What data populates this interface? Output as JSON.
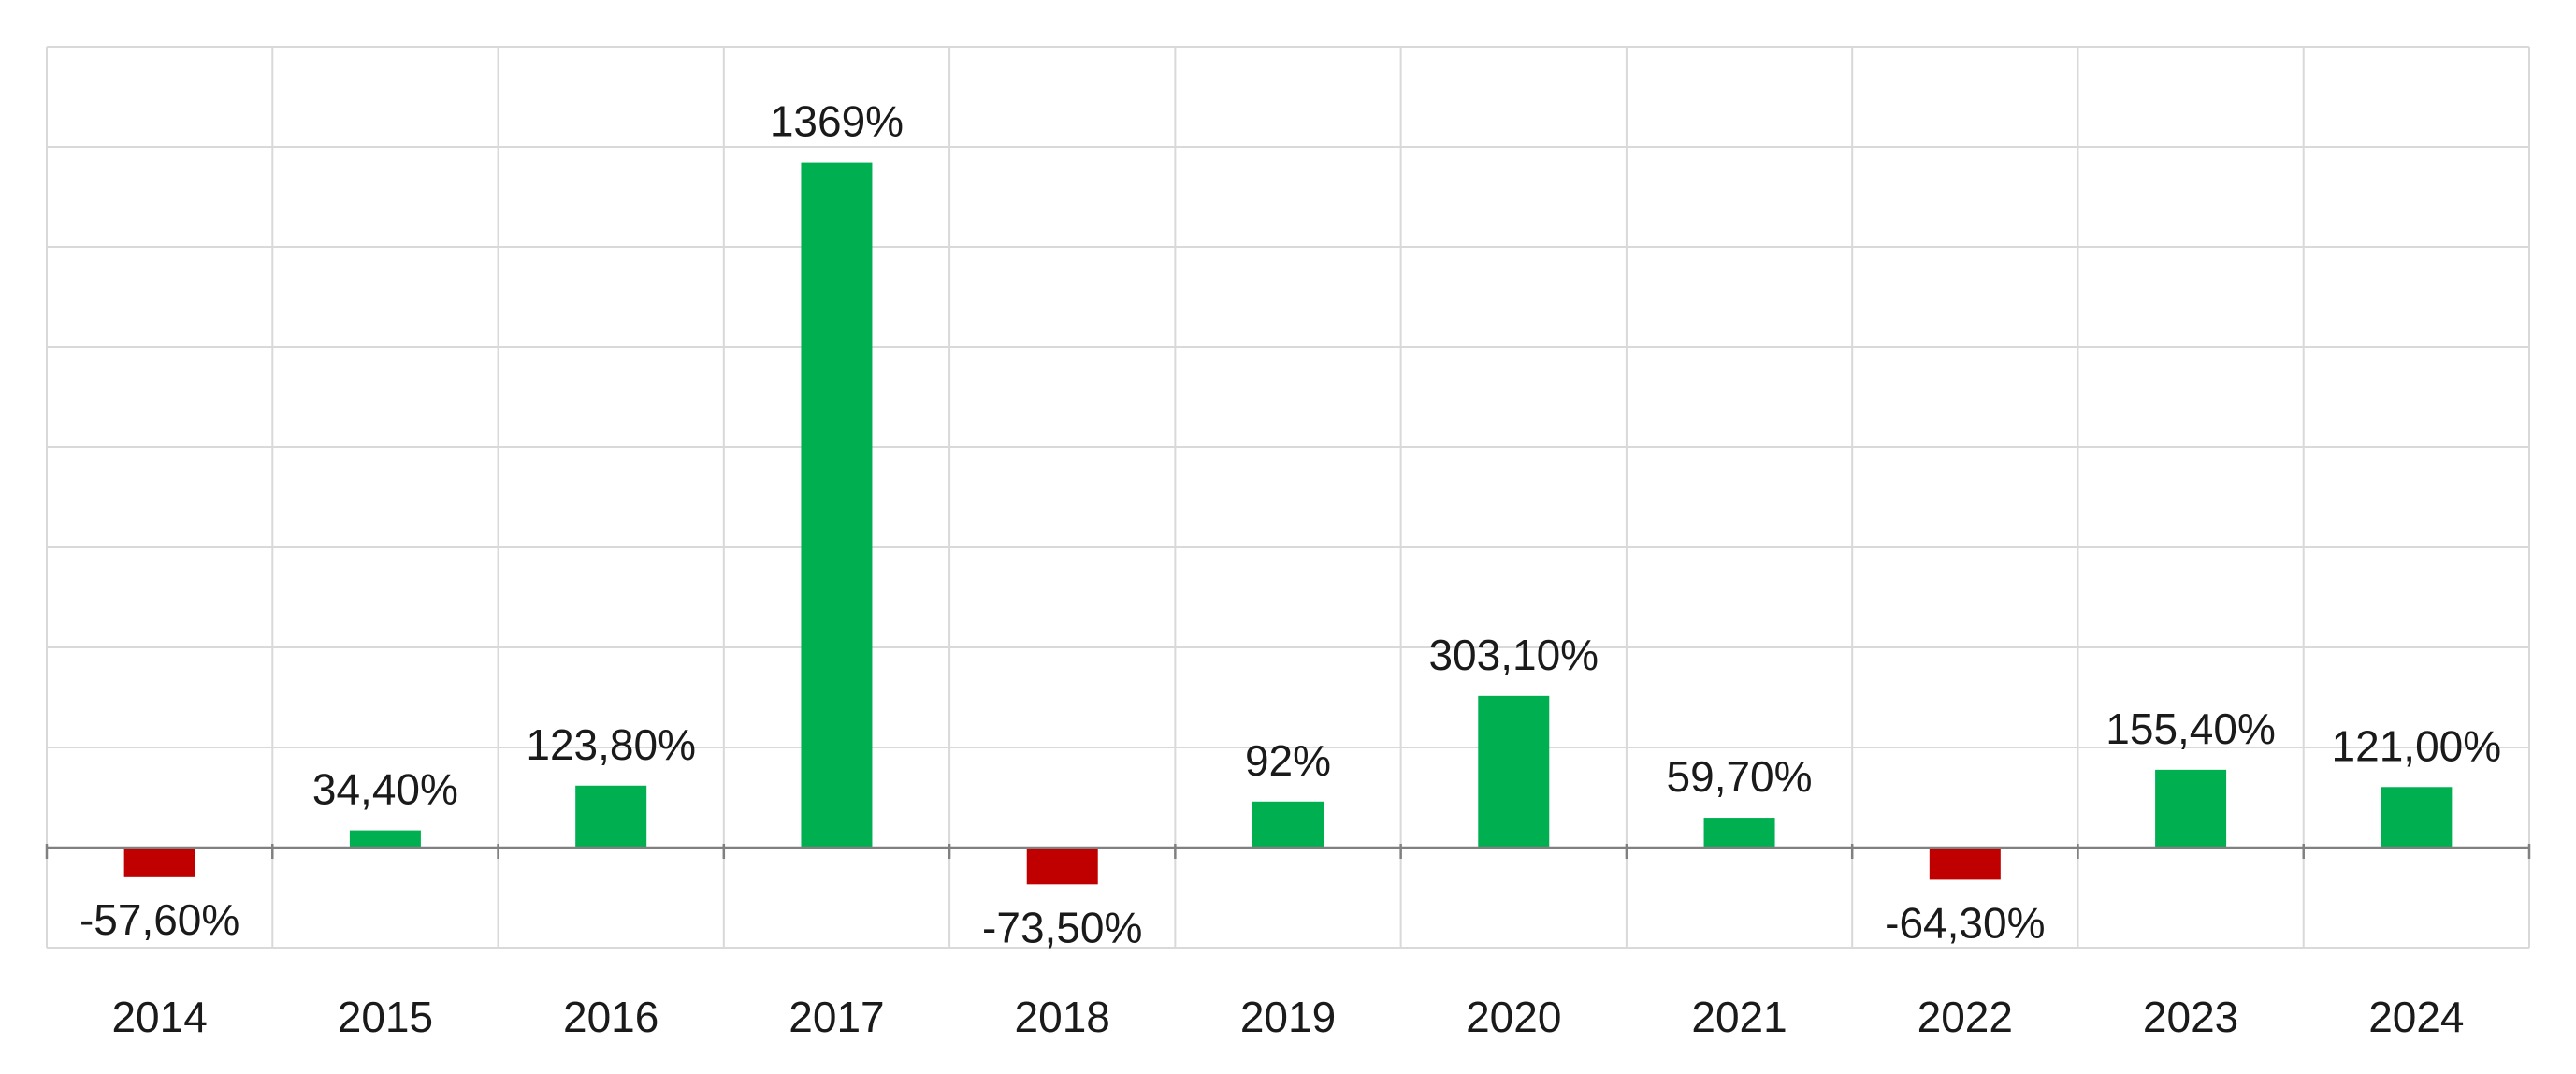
{
  "chart_data": {
    "type": "bar",
    "categories": [
      "2014",
      "2015",
      "2016",
      "2017",
      "2018",
      "2019",
      "2020",
      "2021",
      "2022",
      "2023",
      "2024"
    ],
    "values": [
      -57.6,
      34.4,
      123.8,
      1369,
      -73.5,
      92,
      303.1,
      59.7,
      -64.3,
      155.4,
      121.0
    ],
    "data_labels": [
      "-57,60%",
      "34,40%",
      "123,80%",
      "1369%",
      "-73,50%",
      "92%",
      "303,10%",
      "59,70%",
      "-64,30%",
      "155,40%",
      "121,00%"
    ],
    "ylim": [
      -200,
      1600
    ],
    "y_gridline_step": 200,
    "grid": true,
    "legend": "none",
    "colors": {
      "positive": "#00b050",
      "negative": "#c00000",
      "grid": "#d9d9d9",
      "axis": "#808080"
    }
  }
}
